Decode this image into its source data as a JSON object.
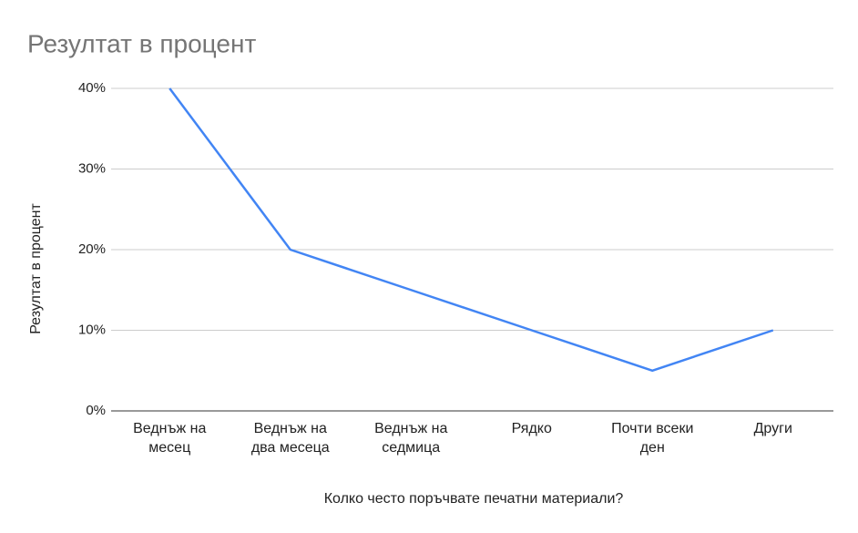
{
  "chart_data": {
    "type": "line",
    "title": "Резултат в процент",
    "x_label": "Колко често поръчвате печатни материали?",
    "y_label": "Резултат в процент",
    "categories": [
      "Веднъж на месец",
      "Веднъж на два месеца",
      "Веднъж на седмица",
      "Рядко",
      "Почти всеки ден",
      "Други"
    ],
    "series": [
      {
        "name": "Резултат в процент",
        "color": "#4285f4",
        "values": [
          40,
          20,
          15,
          10,
          5,
          10
        ]
      }
    ],
    "ylim": [
      0,
      40
    ],
    "yticks": [
      {
        "value": 0,
        "label": "0%"
      },
      {
        "value": 10,
        "label": "10%"
      },
      {
        "value": 20,
        "label": "20%"
      },
      {
        "value": 30,
        "label": "30%"
      },
      {
        "value": 40,
        "label": "40%"
      }
    ],
    "grid": true
  }
}
